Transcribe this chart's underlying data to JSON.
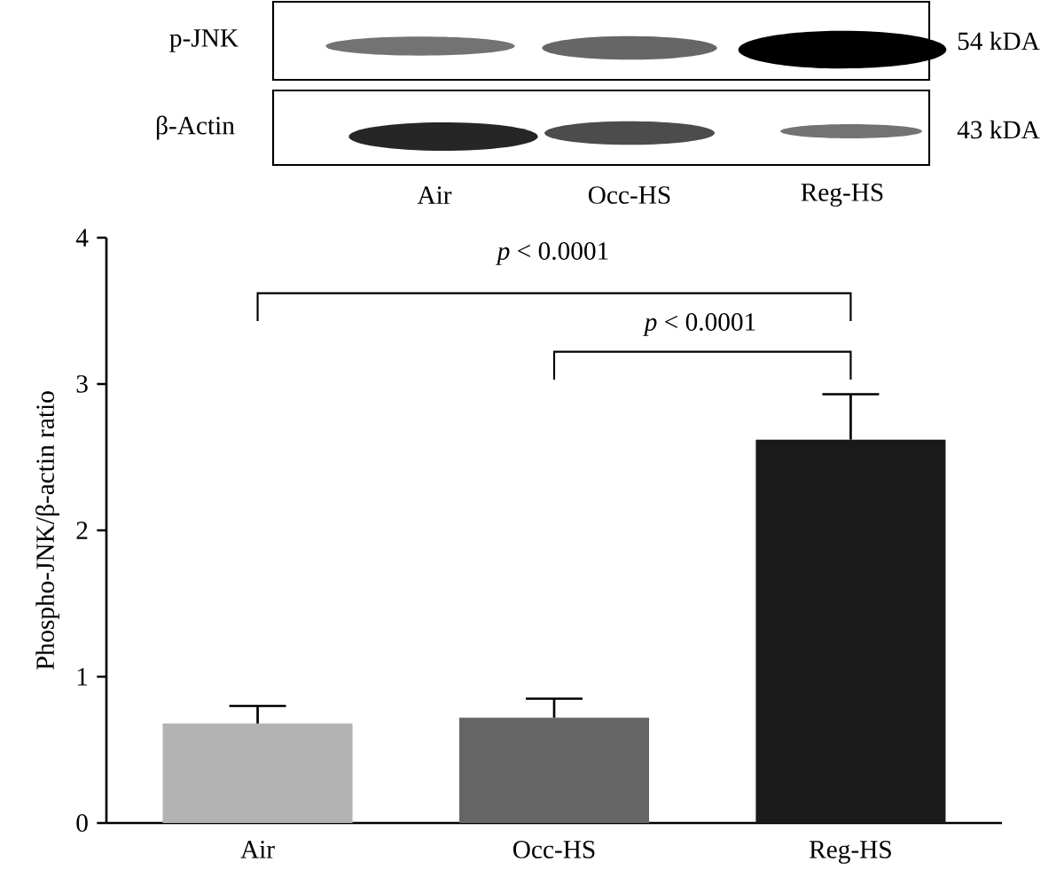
{
  "chart_data": {
    "type": "bar",
    "ylabel": "Phospho-JNK/β-actin ratio",
    "categories": [
      "Air",
      "Occ-HS",
      "Reg-HS"
    ],
    "values": [
      0.68,
      0.72,
      2.62
    ],
    "errors": [
      [
        0.68,
        0.8
      ],
      [
        0.72,
        0.85
      ],
      [
        2.62,
        2.93
      ]
    ],
    "colors": [
      "#b3b3b3",
      "#666666",
      "#1a1a1a"
    ],
    "ylim": [
      0,
      4
    ],
    "yticks": [
      0,
      1,
      2,
      3,
      4
    ],
    "annotations": [
      "*p* < 0.0001",
      "*p* < 0.0001",
      "p-JNK",
      "β-Actin",
      "54 kDA",
      "43 kDA",
      "Air",
      "Occ-HS",
      "Reg-HS"
    ]
  }
}
